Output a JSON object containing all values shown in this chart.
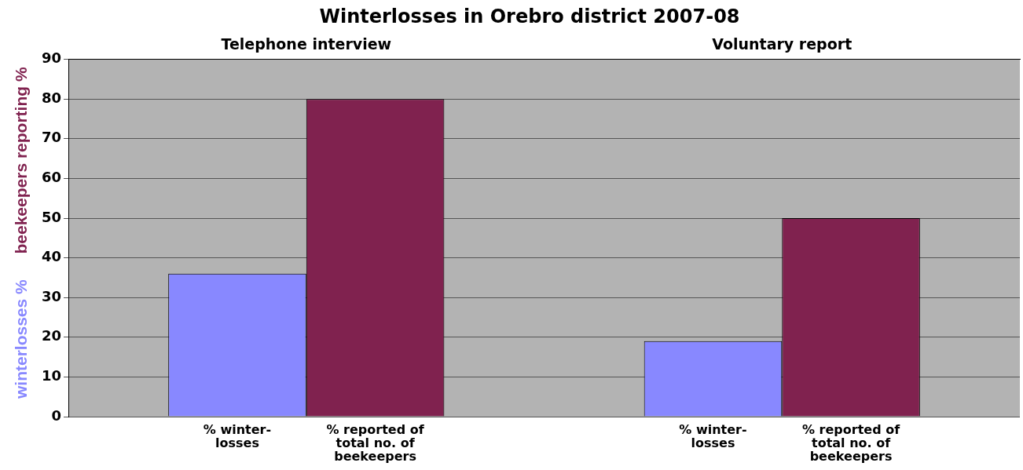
{
  "chart_data": {
    "type": "bar",
    "title": "Winterlosses in Orebro district 2007-08",
    "categories": [
      "Telephone interview",
      "Voluntary report"
    ],
    "series": [
      {
        "name": "% winter-losses",
        "color": "#8888ff",
        "values": [
          36,
          19
        ]
      },
      {
        "name": "% reported of total no. of beekeepers",
        "color": "#80224f",
        "values": [
          80,
          50
        ]
      }
    ],
    "ylim": [
      0,
      90
    ],
    "yticks": [
      0,
      10,
      20,
      30,
      40,
      50,
      60,
      70,
      80,
      90
    ],
    "grid": "y",
    "annotations": [
      "beekeepers reporting %",
      "winterlosses %"
    ]
  }
}
